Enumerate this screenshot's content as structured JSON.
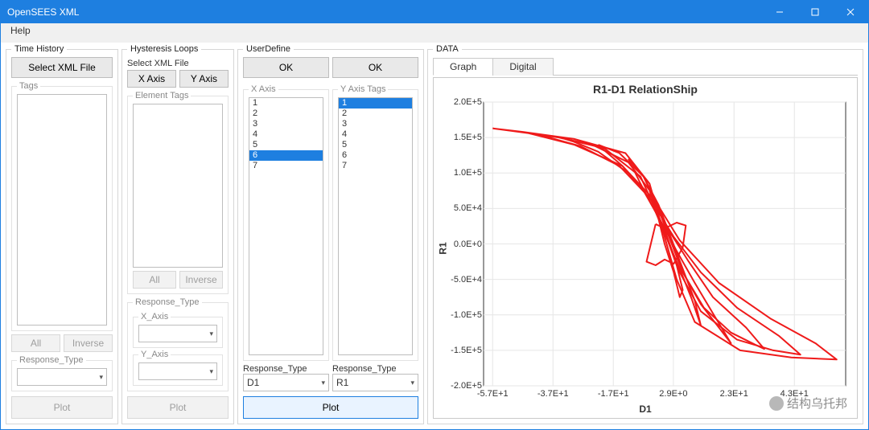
{
  "window": {
    "title": "OpenSEES XML"
  },
  "menu": {
    "help": "Help"
  },
  "panels": {
    "time_history": {
      "legend": "Time History",
      "select_xml": "Select XML File",
      "tags_legend": "Tags",
      "all": "All",
      "inverse": "Inverse",
      "response_type_legend": "Response_Type",
      "plot": "Plot"
    },
    "hyst": {
      "legend": "Hysteresis Loops",
      "select_xml": "Select XML File",
      "x_axis": "X Axis",
      "y_axis": "Y Axis",
      "element_tags_legend": "Element Tags",
      "all": "All",
      "inverse": "Inverse",
      "response_type_legend": "Response_Type",
      "x_axis_legend": "X_Axis",
      "y_axis_legend": "Y_Axis",
      "plot": "Plot"
    },
    "user": {
      "legend": "UserDefine",
      "ok": "OK",
      "x_axis_legend": "X Axis",
      "y_axis_legend": "Y Axis Tags",
      "x_items": [
        "1",
        "2",
        "3",
        "4",
        "5",
        "6",
        "7"
      ],
      "x_selected_index": 5,
      "y_items": [
        "1",
        "2",
        "3",
        "4",
        "5",
        "6",
        "7"
      ],
      "y_selected_index": 0,
      "resp_type_label": "Response_Type",
      "resp_x_value": "D1",
      "resp_y_value": "R1",
      "plot": "Plot"
    },
    "data": {
      "legend": "DATA",
      "tab_graph": "Graph",
      "tab_digital": "Digital"
    }
  },
  "chart": {
    "title": "R1-D1 RelationShip",
    "xlabel": "D1",
    "ylabel": "R1",
    "line_color": "#ef1a1a",
    "line_width": 2,
    "background_color": "#ffffff",
    "border_color": "#333333",
    "grid_color": "#e6e6e6",
    "xlim": [
      -60,
      60
    ],
    "ylim": [
      -200000,
      200000
    ],
    "xticks": [
      {
        "v": -57,
        "l": "-5.7E+1"
      },
      {
        "v": -37,
        "l": "-3.7E+1"
      },
      {
        "v": -17,
        "l": "-1.7E+1"
      },
      {
        "v": 2.9,
        "l": "2.9E+0"
      },
      {
        "v": 23,
        "l": "2.3E+1"
      },
      {
        "v": 43,
        "l": "4.3E+1"
      }
    ],
    "yticks": [
      {
        "v": -200000,
        "l": "-2.0E+5"
      },
      {
        "v": -150000,
        "l": "-1.5E+5"
      },
      {
        "v": -100000,
        "l": "-1.0E+5"
      },
      {
        "v": -50000,
        "l": "-5.0E+4"
      },
      {
        "v": 0,
        "l": "0.0E+0"
      },
      {
        "v": 50000,
        "l": "5.0E+4"
      },
      {
        "v": 100000,
        "l": "1.0E+5"
      },
      {
        "v": 150000,
        "l": "1.5E+5"
      },
      {
        "v": 200000,
        "l": "2.0E+5"
      }
    ],
    "series": [
      [
        [
          -57,
          163000
        ],
        [
          -47,
          158000
        ],
        [
          -30,
          148000
        ],
        [
          -13,
          128000
        ],
        [
          -5,
          85000
        ],
        [
          0,
          10000
        ],
        [
          4,
          -50000
        ],
        [
          10,
          -110000
        ],
        [
          25,
          -150000
        ],
        [
          42,
          -160000
        ],
        [
          57,
          -163000
        ],
        [
          50,
          -140000
        ],
        [
          35,
          -105000
        ],
        [
          18,
          -55000
        ],
        [
          5,
          5000
        ],
        [
          -3,
          60000
        ],
        [
          -14,
          110000
        ],
        [
          -30,
          140000
        ],
        [
          -45,
          156000
        ],
        [
          -57,
          163000
        ]
      ],
      [
        [
          -45,
          156000
        ],
        [
          -35,
          150000
        ],
        [
          -20,
          135000
        ],
        [
          -8,
          95000
        ],
        [
          0,
          20000
        ],
        [
          5,
          -40000
        ],
        [
          12,
          -95000
        ],
        [
          24,
          -135000
        ],
        [
          36,
          -150000
        ],
        [
          45,
          -156000
        ],
        [
          38,
          -130000
        ],
        [
          24,
          -90000
        ],
        [
          12,
          -40000
        ],
        [
          3,
          10000
        ],
        [
          -5,
          65000
        ],
        [
          -15,
          110000
        ],
        [
          -28,
          138000
        ],
        [
          -40,
          152000
        ],
        [
          -45,
          156000
        ]
      ],
      [
        [
          -33,
          148000
        ],
        [
          -24,
          140000
        ],
        [
          -12,
          115000
        ],
        [
          -4,
          70000
        ],
        [
          1,
          15000
        ],
        [
          6,
          -40000
        ],
        [
          13,
          -90000
        ],
        [
          22,
          -125000
        ],
        [
          30,
          -142000
        ],
        [
          33,
          -148000
        ],
        [
          27,
          -118000
        ],
        [
          16,
          -75000
        ],
        [
          8,
          -25000
        ],
        [
          2,
          15000
        ],
        [
          -4,
          60000
        ],
        [
          -12,
          100000
        ],
        [
          -22,
          130000
        ],
        [
          -30,
          144000
        ],
        [
          -33,
          148000
        ]
      ],
      [
        [
          -22,
          140000
        ],
        [
          -15,
          128000
        ],
        [
          -7,
          95000
        ],
        [
          -2,
          50000
        ],
        [
          2,
          5000
        ],
        [
          6,
          -40000
        ],
        [
          12,
          -85000
        ],
        [
          18,
          -118000
        ],
        [
          22,
          -140000
        ],
        [
          17,
          -105000
        ],
        [
          10,
          -55000
        ],
        [
          4,
          -10000
        ],
        [
          -1,
          30000
        ],
        [
          -7,
          75000
        ],
        [
          -14,
          110000
        ],
        [
          -20,
          132000
        ],
        [
          -22,
          140000
        ]
      ],
      [
        [
          -12,
          120000
        ],
        [
          -7,
          95000
        ],
        [
          -2,
          55000
        ],
        [
          2,
          10000
        ],
        [
          6,
          -35000
        ],
        [
          10,
          -80000
        ],
        [
          12,
          -115000
        ],
        [
          9,
          -78000
        ],
        [
          5,
          -35000
        ],
        [
          1,
          5000
        ],
        [
          -3,
          45000
        ],
        [
          -8,
          85000
        ],
        [
          -12,
          120000
        ]
      ],
      [
        [
          -5,
          75000
        ],
        [
          -2,
          40000
        ],
        [
          1,
          5000
        ],
        [
          4,
          -30000
        ],
        [
          6,
          -65000
        ],
        [
          5,
          -75000
        ],
        [
          3,
          -40000
        ],
        [
          0,
          0
        ],
        [
          -2,
          35000
        ],
        [
          -5,
          75000
        ]
      ],
      [
        [
          -3,
          28000
        ],
        [
          0,
          22000
        ],
        [
          4,
          30000
        ],
        [
          7,
          26000
        ],
        [
          6,
          -5000
        ],
        [
          3,
          -28000
        ],
        [
          0,
          -22000
        ],
        [
          -3,
          -30000
        ],
        [
          -6,
          -25000
        ],
        [
          -3,
          28000
        ]
      ]
    ]
  },
  "watermark": {
    "text": "结构乌托邦"
  }
}
